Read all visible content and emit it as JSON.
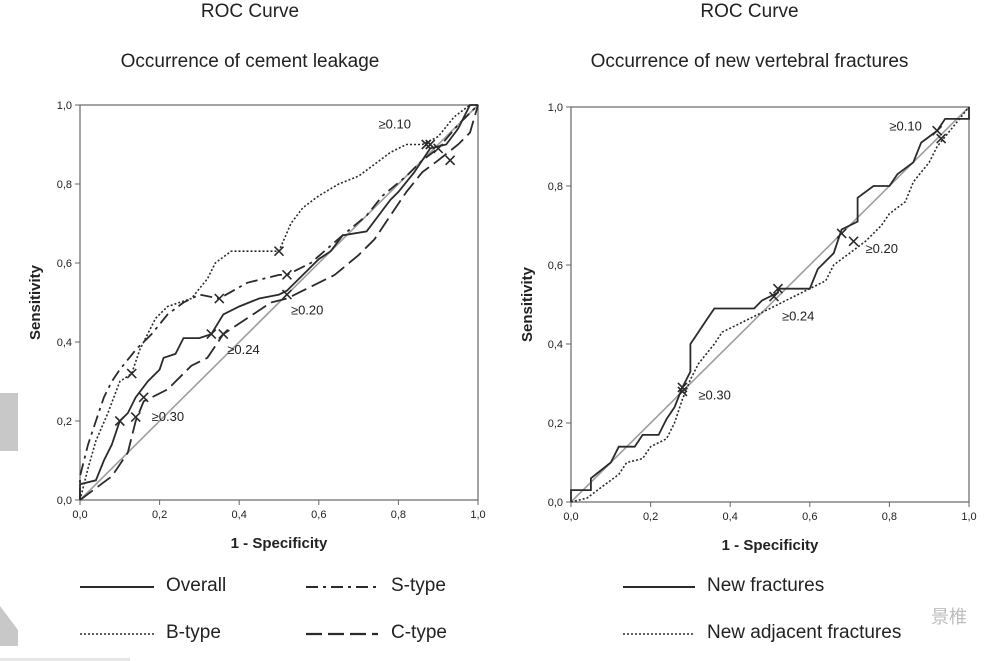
{
  "colors": {
    "line": "#2b2b2b",
    "ref": "#9e9e9e",
    "frame": "#666666"
  },
  "chart_data": [
    {
      "type": "line",
      "title": "ROC Curve",
      "subtitle": "Occurrence of cement leakage",
      "xlabel": "1 - Specificity",
      "ylabel": "Sensitivity",
      "xlim": [
        0,
        1
      ],
      "ylim": [
        0,
        1
      ],
      "ticks": [
        "0,0",
        "0,2",
        "0,4",
        "0,6",
        "0,8",
        "1,0"
      ],
      "grid": false,
      "reference_line": true,
      "series": [
        {
          "name": "Overall",
          "style": "solid",
          "points": [
            [
              0,
              0
            ],
            [
              0,
              0.04
            ],
            [
              0.04,
              0.05
            ],
            [
              0.06,
              0.1
            ],
            [
              0.08,
              0.14
            ],
            [
              0.1,
              0.2
            ],
            [
              0.12,
              0.22
            ],
            [
              0.14,
              0.26
            ],
            [
              0.17,
              0.3
            ],
            [
              0.2,
              0.33
            ],
            [
              0.21,
              0.36
            ],
            [
              0.24,
              0.37
            ],
            [
              0.26,
              0.41
            ],
            [
              0.3,
              0.41
            ],
            [
              0.33,
              0.42
            ],
            [
              0.36,
              0.47
            ],
            [
              0.4,
              0.49
            ],
            [
              0.45,
              0.51
            ],
            [
              0.5,
              0.52
            ],
            [
              0.52,
              0.53
            ],
            [
              0.56,
              0.57
            ],
            [
              0.6,
              0.61
            ],
            [
              0.63,
              0.63
            ],
            [
              0.66,
              0.67
            ],
            [
              0.72,
              0.68
            ],
            [
              0.78,
              0.76
            ],
            [
              0.8,
              0.78
            ],
            [
              0.84,
              0.83
            ],
            [
              0.88,
              0.89
            ],
            [
              0.92,
              0.9
            ],
            [
              0.95,
              0.94
            ],
            [
              0.98,
              1.0
            ],
            [
              1,
              1
            ]
          ]
        },
        {
          "name": "S-type",
          "style": "dashdot",
          "points": [
            [
              0,
              0
            ],
            [
              0,
              0.06
            ],
            [
              0.02,
              0.14
            ],
            [
              0.04,
              0.2
            ],
            [
              0.06,
              0.26
            ],
            [
              0.08,
              0.3
            ],
            [
              0.1,
              0.33
            ],
            [
              0.14,
              0.38
            ],
            [
              0.18,
              0.42
            ],
            [
              0.22,
              0.47
            ],
            [
              0.26,
              0.5
            ],
            [
              0.3,
              0.52
            ],
            [
              0.35,
              0.51
            ],
            [
              0.42,
              0.55
            ],
            [
              0.5,
              0.57
            ],
            [
              0.52,
              0.57
            ],
            [
              0.58,
              0.6
            ],
            [
              0.66,
              0.67
            ],
            [
              0.72,
              0.72
            ],
            [
              0.76,
              0.77
            ],
            [
              0.82,
              0.82
            ],
            [
              0.86,
              0.86
            ],
            [
              0.9,
              0.89
            ],
            [
              0.95,
              0.95
            ],
            [
              1,
              1
            ]
          ]
        },
        {
          "name": "B-type",
          "style": "dotted",
          "points": [
            [
              0,
              0
            ],
            [
              0.02,
              0.08
            ],
            [
              0.04,
              0.15
            ],
            [
              0.07,
              0.22
            ],
            [
              0.1,
              0.3
            ],
            [
              0.13,
              0.32
            ],
            [
              0.15,
              0.38
            ],
            [
              0.19,
              0.46
            ],
            [
              0.22,
              0.49
            ],
            [
              0.25,
              0.5
            ],
            [
              0.28,
              0.51
            ],
            [
              0.32,
              0.56
            ],
            [
              0.34,
              0.6
            ],
            [
              0.38,
              0.63
            ],
            [
              0.44,
              0.63
            ],
            [
              0.5,
              0.63
            ],
            [
              0.53,
              0.7
            ],
            [
              0.56,
              0.74
            ],
            [
              0.6,
              0.77
            ],
            [
              0.65,
              0.8
            ],
            [
              0.7,
              0.82
            ],
            [
              0.74,
              0.85
            ],
            [
              0.78,
              0.88
            ],
            [
              0.82,
              0.9
            ],
            [
              0.86,
              0.9
            ],
            [
              0.9,
              0.92
            ],
            [
              0.94,
              0.97
            ],
            [
              0.98,
              1.0
            ],
            [
              1,
              1
            ]
          ]
        },
        {
          "name": "C-type",
          "style": "longdash",
          "points": [
            [
              0,
              0
            ],
            [
              0.04,
              0.03
            ],
            [
              0.08,
              0.06
            ],
            [
              0.12,
              0.12
            ],
            [
              0.14,
              0.2
            ],
            [
              0.16,
              0.25
            ],
            [
              0.22,
              0.28
            ],
            [
              0.28,
              0.34
            ],
            [
              0.32,
              0.36
            ],
            [
              0.36,
              0.42
            ],
            [
              0.42,
              0.46
            ],
            [
              0.48,
              0.5
            ],
            [
              0.52,
              0.51
            ],
            [
              0.58,
              0.54
            ],
            [
              0.64,
              0.57
            ],
            [
              0.7,
              0.62
            ],
            [
              0.74,
              0.66
            ],
            [
              0.78,
              0.72
            ],
            [
              0.82,
              0.78
            ],
            [
              0.86,
              0.83
            ],
            [
              0.9,
              0.86
            ],
            [
              0.95,
              0.9
            ],
            [
              0.98,
              0.93
            ],
            [
              1,
              1
            ]
          ]
        }
      ],
      "markers": [
        [
          0.1,
          0.2
        ],
        [
          0.13,
          0.32
        ],
        [
          0.14,
          0.21
        ],
        [
          0.16,
          0.26
        ],
        [
          0.33,
          0.42
        ],
        [
          0.36,
          0.42
        ],
        [
          0.35,
          0.51
        ],
        [
          0.5,
          0.63
        ],
        [
          0.52,
          0.57
        ],
        [
          0.52,
          0.52
        ],
        [
          0.88,
          0.9
        ],
        [
          0.87,
          0.9
        ],
        [
          0.9,
          0.89
        ],
        [
          0.93,
          0.86
        ]
      ],
      "annotations": [
        {
          "text": "≥0.10",
          "x": 0.75,
          "y": 0.94
        },
        {
          "text": "≥0.20",
          "x": 0.53,
          "y": 0.47
        },
        {
          "text": "≥0.24",
          "x": 0.37,
          "y": 0.37
        },
        {
          "text": "≥0.30",
          "x": 0.18,
          "y": 0.2
        }
      ],
      "legend": [
        {
          "label": "Overall",
          "style": "solid"
        },
        {
          "label": "S-type",
          "style": "dashdot"
        },
        {
          "label": "B-type",
          "style": "dotted"
        },
        {
          "label": "C-type",
          "style": "longdash"
        }
      ]
    },
    {
      "type": "line",
      "title": "ROC Curve",
      "subtitle": "Occurrence of new vertebral fractures",
      "xlabel": "1 - Specificity",
      "ylabel": "Sensitivity",
      "xlim": [
        0,
        1
      ],
      "ylim": [
        0,
        1
      ],
      "ticks": [
        "0,0",
        "0,2",
        "0,4",
        "0,6",
        "0,8",
        "1,0"
      ],
      "grid": false,
      "reference_line": true,
      "series": [
        {
          "name": "New fractures",
          "style": "solid",
          "points": [
            [
              0,
              0
            ],
            [
              0,
              0.03
            ],
            [
              0.05,
              0.03
            ],
            [
              0.05,
              0.06
            ],
            [
              0.1,
              0.1
            ],
            [
              0.12,
              0.14
            ],
            [
              0.16,
              0.14
            ],
            [
              0.18,
              0.17
            ],
            [
              0.22,
              0.17
            ],
            [
              0.24,
              0.21
            ],
            [
              0.26,
              0.24
            ],
            [
              0.28,
              0.29
            ],
            [
              0.3,
              0.33
            ],
            [
              0.3,
              0.4
            ],
            [
              0.32,
              0.43
            ],
            [
              0.34,
              0.46
            ],
            [
              0.36,
              0.49
            ],
            [
              0.46,
              0.49
            ],
            [
              0.48,
              0.51
            ],
            [
              0.52,
              0.53
            ],
            [
              0.52,
              0.54
            ],
            [
              0.6,
              0.54
            ],
            [
              0.62,
              0.59
            ],
            [
              0.66,
              0.63
            ],
            [
              0.68,
              0.69
            ],
            [
              0.72,
              0.71
            ],
            [
              0.72,
              0.77
            ],
            [
              0.76,
              0.8
            ],
            [
              0.8,
              0.8
            ],
            [
              0.82,
              0.83
            ],
            [
              0.86,
              0.86
            ],
            [
              0.88,
              0.91
            ],
            [
              0.92,
              0.94
            ],
            [
              0.94,
              0.97
            ],
            [
              1,
              0.97
            ],
            [
              1,
              1
            ]
          ]
        },
        {
          "name": "New adjacent fractures",
          "style": "dotted",
          "points": [
            [
              0,
              0
            ],
            [
              0.04,
              0.01
            ],
            [
              0.08,
              0.04
            ],
            [
              0.12,
              0.07
            ],
            [
              0.14,
              0.1
            ],
            [
              0.18,
              0.11
            ],
            [
              0.2,
              0.14
            ],
            [
              0.24,
              0.16
            ],
            [
              0.26,
              0.2
            ],
            [
              0.28,
              0.26
            ],
            [
              0.3,
              0.31
            ],
            [
              0.32,
              0.35
            ],
            [
              0.36,
              0.4
            ],
            [
              0.38,
              0.43
            ],
            [
              0.42,
              0.45
            ],
            [
              0.5,
              0.49
            ],
            [
              0.54,
              0.51
            ],
            [
              0.58,
              0.53
            ],
            [
              0.64,
              0.56
            ],
            [
              0.66,
              0.6
            ],
            [
              0.7,
              0.63
            ],
            [
              0.74,
              0.66
            ],
            [
              0.78,
              0.7
            ],
            [
              0.8,
              0.73
            ],
            [
              0.84,
              0.76
            ],
            [
              0.86,
              0.81
            ],
            [
              0.9,
              0.86
            ],
            [
              0.92,
              0.9
            ],
            [
              0.96,
              0.95
            ],
            [
              1,
              1
            ]
          ]
        }
      ],
      "markers": [
        [
          0.28,
          0.29
        ],
        [
          0.28,
          0.28
        ],
        [
          0.52,
          0.54
        ],
        [
          0.51,
          0.52
        ],
        [
          0.68,
          0.68
        ],
        [
          0.71,
          0.66
        ],
        [
          0.92,
          0.94
        ],
        [
          0.93,
          0.92
        ]
      ],
      "annotations": [
        {
          "text": "≥0.10",
          "x": 0.8,
          "y": 0.94
        },
        {
          "text": "≥0.20",
          "x": 0.74,
          "y": 0.63
        },
        {
          "text": "≥0.24",
          "x": 0.53,
          "y": 0.46
        },
        {
          "text": "≥0.30",
          "x": 0.32,
          "y": 0.26
        }
      ],
      "legend": [
        {
          "label": "New fractures",
          "style": "solid"
        },
        {
          "label": "New adjacent fractures",
          "style": "dotted"
        }
      ]
    }
  ],
  "watermark": "景椎"
}
